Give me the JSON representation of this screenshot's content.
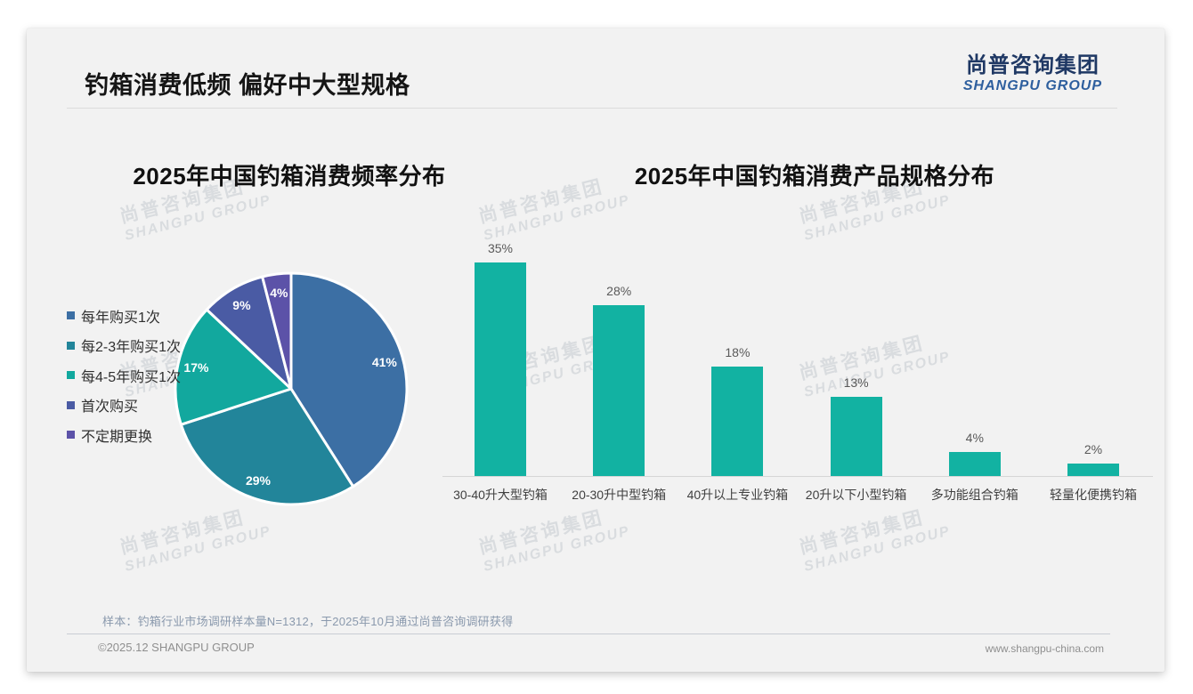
{
  "slide": {
    "title": "钓箱消费低频 偏好中大型规格",
    "logo": {
      "cn": "尚普咨询集团",
      "en": "SHANGPU GROUP"
    },
    "watermark": {
      "cn": "尚普咨询集团",
      "en": "SHANGPU GROUP"
    },
    "source_note": "样本：钓箱行业市场调研样本量N=1312，于2025年10月通过尚普咨询调研获得",
    "footer_left": "©2025.12 SHANGPU GROUP",
    "footer_right": "www.shangpu-china.com"
  },
  "chart_data": [
    {
      "type": "pie",
      "title": "2025年中国钓箱消费频率分布",
      "labels": [
        "每年购买1次",
        "每2-3年购买1次",
        "每4-5年购买1次",
        "首次购买",
        "不定期更换"
      ],
      "values": [
        41,
        29,
        17,
        9,
        4
      ],
      "data_labels": [
        "41%",
        "29%",
        "17%",
        "9%",
        "4%"
      ],
      "unit": "%",
      "colors": [
        "#3C6FA4",
        "#22859A",
        "#12A89E",
        "#4A5BA4",
        "#5C52A8"
      ],
      "start_angle_deg": 0,
      "direction": "clockwise",
      "legend_position": "left"
    },
    {
      "type": "bar",
      "title": "2025年中国钓箱消费产品规格分布",
      "categories": [
        "30-40升大型钓箱",
        "20-30升中型钓箱",
        "40升以上专业钓箱",
        "20升以下小型钓箱",
        "多功能组合钓箱",
        "轻量化便携钓箱"
      ],
      "values": [
        35,
        28,
        18,
        13,
        4,
        2
      ],
      "data_labels": [
        "35%",
        "28%",
        "18%",
        "13%",
        "4%",
        "2%"
      ],
      "unit": "%",
      "bar_color": "#12B2A2",
      "ylim": [
        0,
        36.5
      ],
      "grid": false,
      "axis_line_color": "#D6D6D6"
    }
  ]
}
